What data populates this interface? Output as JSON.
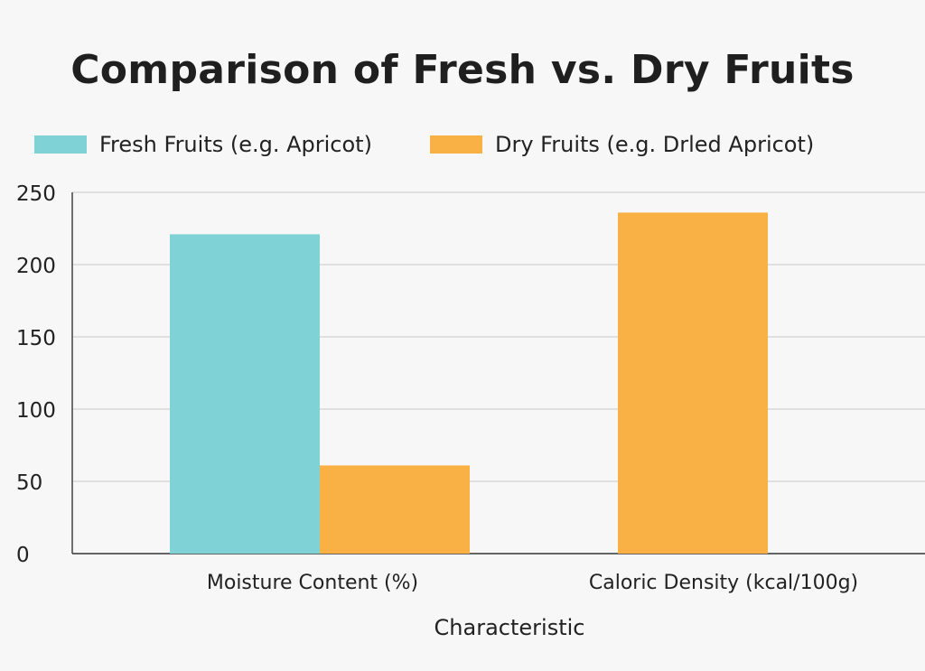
{
  "chart_data": {
    "type": "bar",
    "title": "Comparison of Fresh vs. Dry Fruits",
    "xlabel": "Characteristic",
    "ylabel": "",
    "categories": [
      "Moisture Content (%)",
      "Caloric Density (kcal/100g)"
    ],
    "series": [
      {
        "name": "Fresh Fruits (e.g. Apricot)",
        "color": "#7fd3d6",
        "values": [
          221,
          0
        ]
      },
      {
        "name": "Dry Fruits (e.g. Drled Apricot)",
        "color": "#f9b044",
        "values": [
          61,
          236
        ]
      }
    ],
    "ylim": [
      0,
      250
    ],
    "yticks": [
      0,
      50,
      100,
      150,
      200,
      250
    ],
    "grid": true,
    "legend_position": "top-left"
  }
}
